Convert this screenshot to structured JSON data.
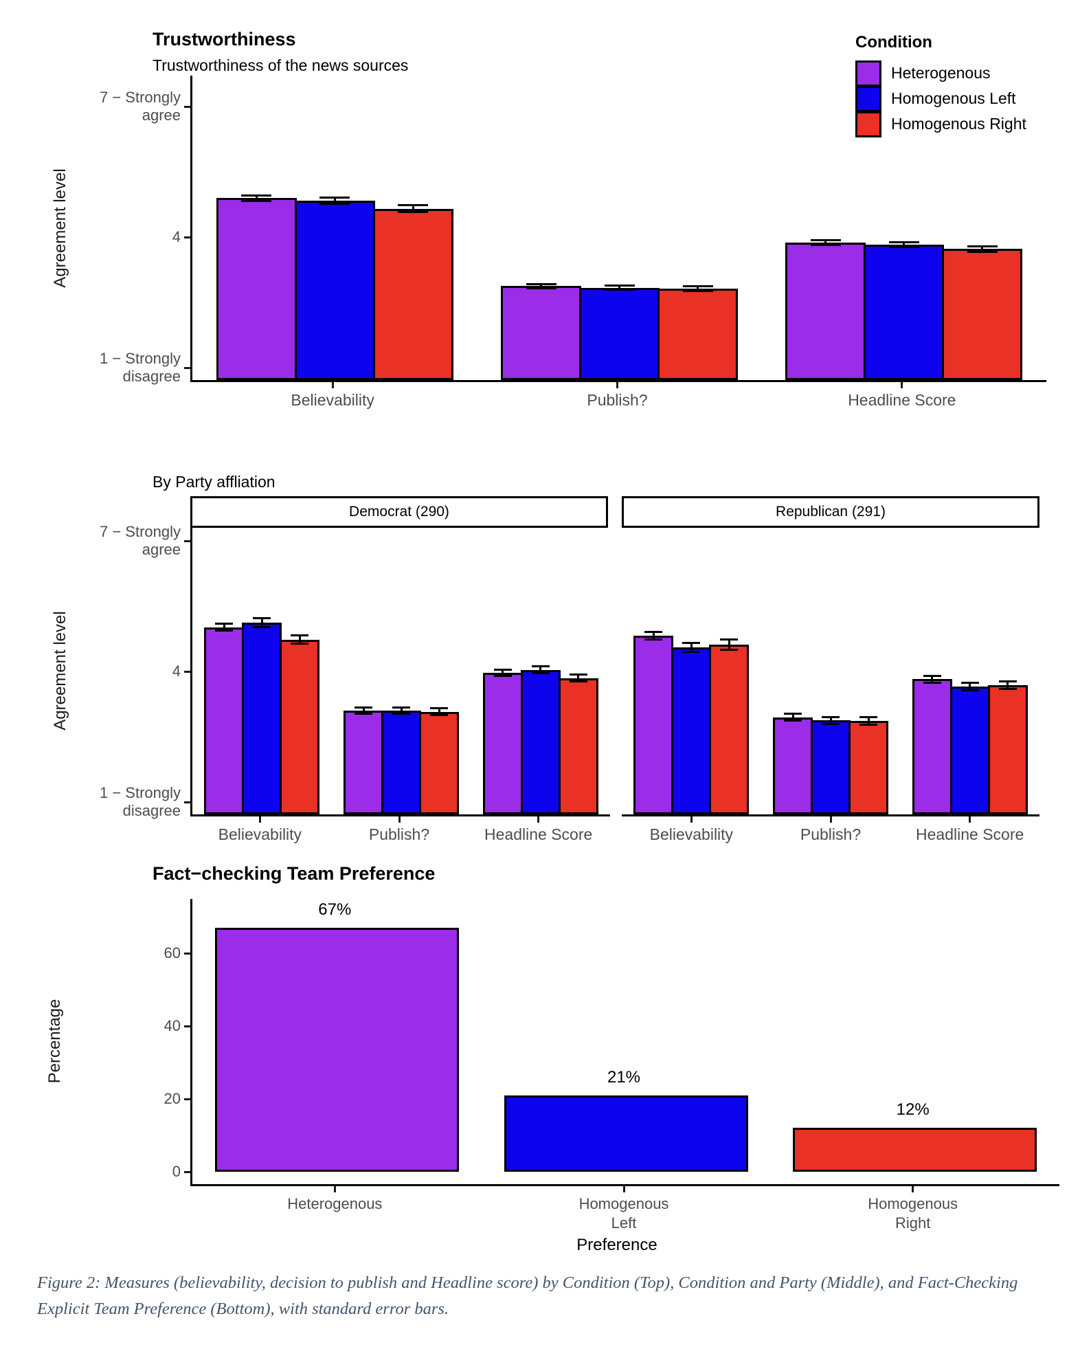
{
  "colors": {
    "heterogenous": "#9B2CE8",
    "homogenous_left": "#0D04ED",
    "homogenous_right": "#E93125",
    "bar_border": "#000000",
    "axis_text": "#4d4d4d",
    "caption_text": "#44546A"
  },
  "legend": {
    "title": "Condition",
    "items": [
      {
        "label": "Heterogenous",
        "color": "#9B2CE8"
      },
      {
        "label": "Homogenous Left",
        "color": "#0D04ED"
      },
      {
        "label": "Homogenous Right",
        "color": "#E93125"
      }
    ]
  },
  "chart_data": [
    {
      "id": "trustworthiness",
      "type": "bar",
      "title": "Trustworthiness",
      "subtitle": "Trustworthiness of the news sources",
      "ylabel": "Agreement level",
      "categories": [
        "Believability",
        "Publish?",
        "Headline Score"
      ],
      "series": [
        {
          "name": "Heterogenous",
          "color": "#9B2CE8",
          "values": [
            4.9,
            2.88,
            3.88
          ],
          "se": [
            0.06,
            0.05,
            0.05
          ]
        },
        {
          "name": "Homogenous Left",
          "color": "#0D04ED",
          "values": [
            4.85,
            2.84,
            3.83
          ],
          "se": [
            0.07,
            0.05,
            0.05
          ]
        },
        {
          "name": "Homogenous Right",
          "color": "#E93125",
          "values": [
            4.66,
            2.82,
            3.73
          ],
          "se": [
            0.08,
            0.06,
            0.06
          ]
        }
      ],
      "yticks": [
        {
          "value": 7,
          "label": "7 − Strongly\nagree"
        },
        {
          "value": 4,
          "label": "4"
        },
        {
          "value": 1,
          "label": "1 − Strongly\ndisagree"
        }
      ],
      "ylim": [
        1,
        7
      ],
      "legend_position": "top-right",
      "grid": false
    },
    {
      "id": "by-party-affiliation",
      "type": "bar-faceted",
      "title": "By Party affliation",
      "ylabel": "Agreement level",
      "categories": [
        "Believability",
        "Publish?",
        "Headline Score"
      ],
      "facets": [
        {
          "label": "Democrat (290)",
          "series": [
            {
              "name": "Heterogenous",
              "color": "#9B2CE8",
              "values": [
                5.02,
                3.1,
                3.98
              ],
              "se": [
                0.08,
                0.07,
                0.07
              ]
            },
            {
              "name": "Homogenous Left",
              "color": "#0D04ED",
              "values": [
                5.13,
                3.11,
                4.04
              ],
              "se": [
                0.1,
                0.07,
                0.08
              ]
            },
            {
              "name": "Homogenous Right",
              "color": "#E93125",
              "values": [
                4.74,
                3.08,
                3.85
              ],
              "se": [
                0.1,
                0.08,
                0.08
              ]
            }
          ]
        },
        {
          "label": "Republican (291)",
          "series": [
            {
              "name": "Heterogenous",
              "color": "#9B2CE8",
              "values": [
                4.83,
                2.95,
                3.83
              ],
              "se": [
                0.09,
                0.08,
                0.08
              ]
            },
            {
              "name": "Homogenous Left",
              "color": "#0D04ED",
              "values": [
                4.56,
                2.88,
                3.66
              ],
              "se": [
                0.1,
                0.08,
                0.09
              ]
            },
            {
              "name": "Homogenous Right",
              "color": "#E93125",
              "values": [
                4.62,
                2.87,
                3.69
              ],
              "se": [
                0.12,
                0.09,
                0.09
              ]
            }
          ]
        }
      ],
      "yticks": [
        {
          "value": 7,
          "label": "7 − Strongly\nagree"
        },
        {
          "value": 4,
          "label": "4"
        },
        {
          "value": 1,
          "label": "1 − Strongly\ndisagree"
        }
      ],
      "ylim": [
        1,
        7
      ],
      "grid": false
    },
    {
      "id": "fact-checking-team-preference",
      "type": "bar",
      "title": "Fact−checking Team Preference",
      "ylabel": "Percentage",
      "xlabel": "Preference",
      "categories": [
        "Heterogenous",
        "Homogenous\nLeft",
        "Homogenous\nRight"
      ],
      "values": [
        67,
        21,
        12
      ],
      "bar_labels": [
        "67%",
        "21%",
        "12%"
      ],
      "bar_colors": [
        "#9B2CE8",
        "#0D04ED",
        "#E93125"
      ],
      "yticks": [
        0,
        20,
        40,
        60
      ],
      "ylim": [
        0,
        70
      ],
      "grid": false
    }
  ],
  "caption": "Figure 2: Measures (believability, decision to publish and Headline score) by Condition (Top), Condition and Party (Middle), and Fact-Checking Explicit Team Preference (Bottom), with standard error bars."
}
